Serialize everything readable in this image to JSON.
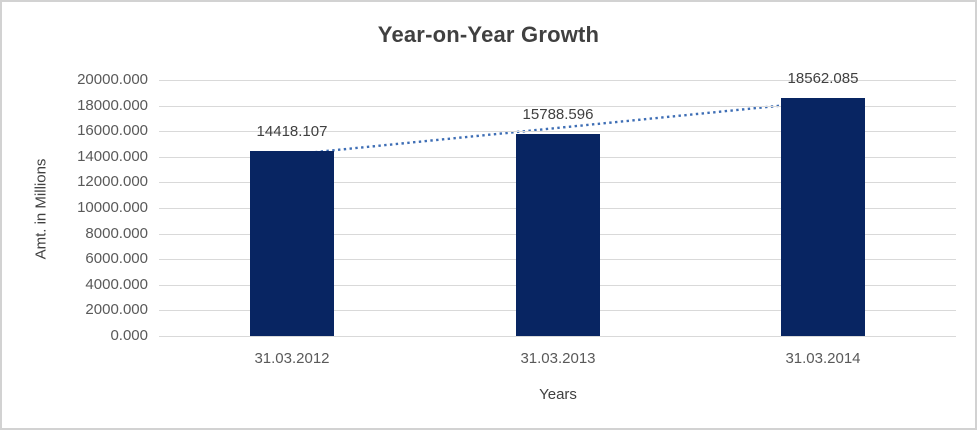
{
  "chart_data": {
    "type": "bar",
    "title": "Year-on-Year Growth",
    "xlabel": "Years",
    "ylabel": "Amt. in Millions",
    "categories": [
      "31.03.2012",
      "31.03.2013",
      "31.03.2014"
    ],
    "values": [
      14418.107,
      15788.596,
      18562.085
    ],
    "data_labels": [
      "14418.107",
      "15788.596",
      "18562.085"
    ],
    "ylim": [
      0,
      20000
    ],
    "ytick_step": 2000,
    "ytick_values": [
      0,
      2000,
      4000,
      6000,
      8000,
      10000,
      12000,
      14000,
      16000,
      18000,
      20000
    ],
    "ytick_labels": [
      "0.000",
      "2000.000",
      "4000.000",
      "6000.000",
      "8000.000",
      "10000.000",
      "12000.000",
      "14000.000",
      "16000.000",
      "18000.000",
      "20000.000"
    ],
    "grid": true,
    "legend": "none",
    "bar_color": "#082562",
    "trendline": {
      "type": "linear",
      "style": "dotted",
      "color": "#3e6eb5",
      "start_value": 14184.274,
      "end_value": 18328.252
    },
    "colors": {
      "background": "#ffffff",
      "frame_border": "#d2d2d2",
      "gridline": "#d9d9d9",
      "title_text": "#404040",
      "tick_text": "#595959",
      "axis_title_text": "#404040",
      "data_label_text": "#404040"
    }
  }
}
